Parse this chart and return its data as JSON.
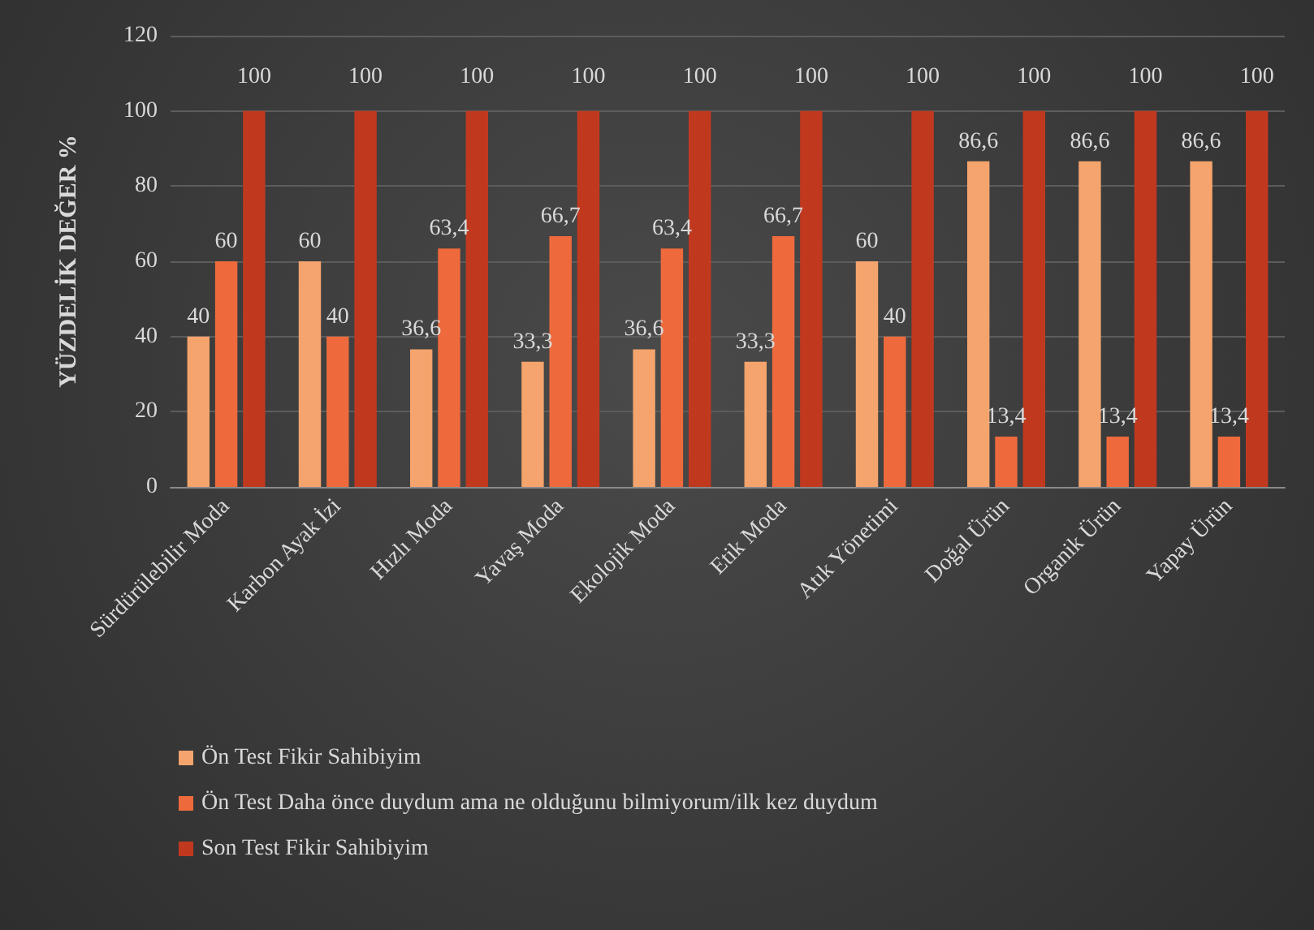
{
  "chart_data": {
    "type": "bar",
    "ylabel": "YÜZDELİK DEĞER %",
    "categories": [
      "Sürdürülebilir Moda",
      "Karbon Ayak İzi",
      "Hızlı Moda",
      "Yavaş Moda",
      "Ekolojik Moda",
      "Etik Moda",
      "Atık Yönetimi",
      "Doğal Ürün",
      "Organik Ürün",
      "Yapay Ürün"
    ],
    "series": [
      {
        "name": "Ön Test Fikir Sahibiyim",
        "color": "#f4a46c",
        "values": [
          40,
          60,
          36.6,
          33.3,
          36.6,
          33.3,
          60,
          86.6,
          86.6,
          86.6
        ],
        "value_labels": [
          "40",
          "60",
          "36,6",
          "33,3",
          "36,6",
          "33,3",
          "60",
          "86,6",
          "86,6",
          "86,6"
        ]
      },
      {
        "name": "Ön Test Daha önce duydum ama ne olduğunu bilmiyorum/ilk kez duydum",
        "color": "#ee6a3c",
        "values": [
          60,
          40,
          63.4,
          66.7,
          63.4,
          66.7,
          40,
          13.4,
          13.4,
          13.4
        ],
        "value_labels": [
          "60",
          "40",
          "63,4",
          "66,7",
          "63,4",
          "66,7",
          "40",
          "13,4",
          "13,4",
          "13,4"
        ]
      },
      {
        "name": "Son Test Fikir Sahibiyim",
        "color": "#c0391f",
        "values": [
          100,
          100,
          100,
          100,
          100,
          100,
          100,
          100,
          100,
          100
        ],
        "value_labels": [
          "100",
          "100",
          "100",
          "100",
          "100",
          "100",
          "100",
          "100",
          "100",
          "100"
        ]
      }
    ],
    "ylim": [
      0,
      120
    ],
    "yticks": [
      0,
      20,
      40,
      60,
      80,
      100,
      120
    ],
    "grid": "y",
    "legend": "bottom left"
  }
}
